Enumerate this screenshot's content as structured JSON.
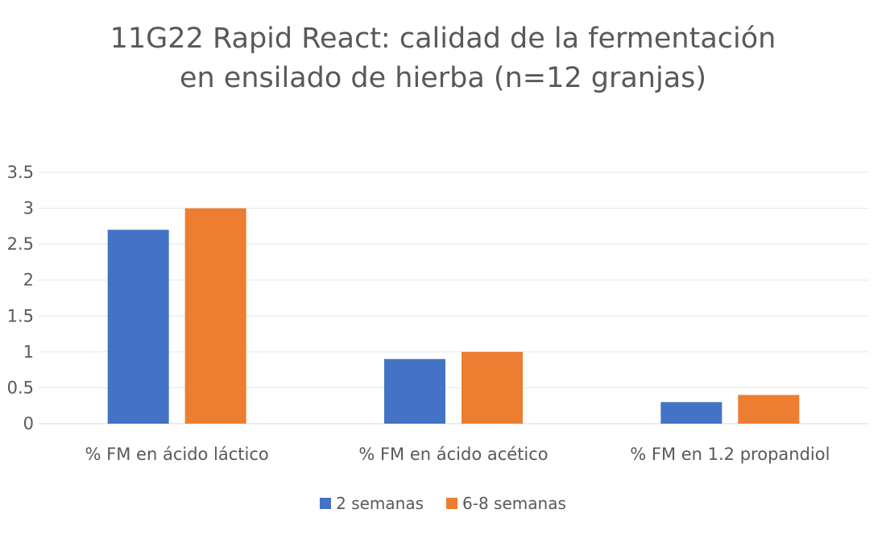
{
  "chart_data": {
    "type": "bar",
    "title_lines": [
      "11G22 Rapid React: calidad de la fermentación",
      "en ensilado de hierba (n=12 granjas)"
    ],
    "categories": [
      "% FM en ácido láctico",
      "% FM en ácido acético",
      "% FM en 1.2 propandiol"
    ],
    "series": [
      {
        "name": "2 semanas",
        "color": "#4472C4",
        "values": [
          2.7,
          0.9,
          0.3
        ]
      },
      {
        "name": "6-8 semanas",
        "color": "#ED7D31",
        "values": [
          3.0,
          1.0,
          0.4
        ]
      }
    ],
    "ylim": [
      0,
      3.5
    ],
    "yticks": [
      "0",
      "0.5",
      "1",
      "1.5",
      "2",
      "2.5",
      "3",
      "3.5"
    ],
    "grid": true,
    "legend_position": "bottom"
  }
}
